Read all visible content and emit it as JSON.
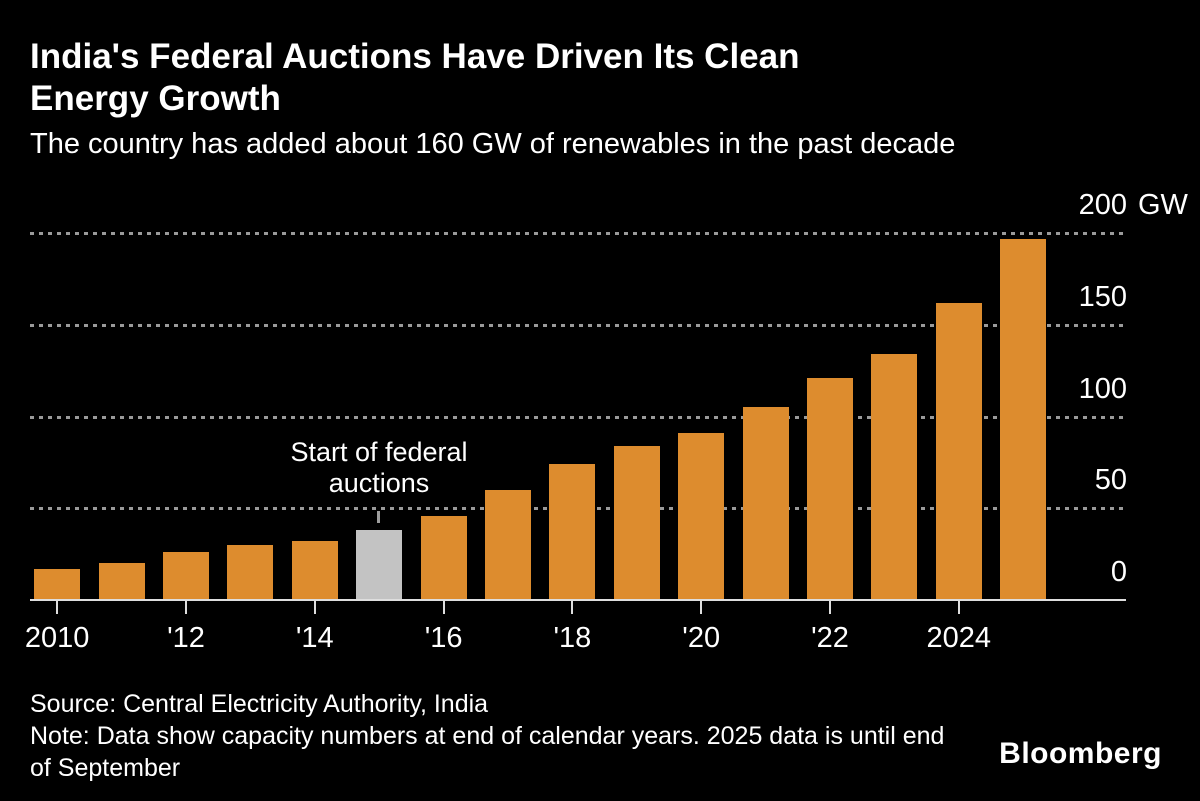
{
  "header": {
    "title_lines": [
      "India's Federal Auctions Have Driven Its Clean",
      "Energy Growth"
    ],
    "subtitle": "The country has added about 160 GW of renewables in the past decade"
  },
  "chart_data": {
    "type": "bar",
    "title": "India's Federal Auctions Have Driven Its Clean Energy Growth",
    "subtitle": "The country has added about 160 GW of renewables in the past decade",
    "unit": "GW",
    "categories": [
      2010,
      2011,
      2012,
      2013,
      2014,
      2015,
      2016,
      2017,
      2018,
      2019,
      2020,
      2021,
      2022,
      2023,
      2024,
      2025
    ],
    "values": [
      17,
      20,
      26,
      30,
      32,
      38,
      46,
      60,
      74,
      84,
      91,
      105,
      121,
      134,
      162,
      197
    ],
    "highlight_index": 5,
    "highlight_category": 2015,
    "annotation": {
      "text": "Start of federal auctions",
      "target_year": 2015
    },
    "y_ticks": [
      0,
      50,
      100,
      150,
      200
    ],
    "ylim": [
      0,
      200
    ],
    "grid": true,
    "legend": "none",
    "x_tick_labels": [
      "2010",
      "'12",
      "'14",
      "'16",
      "'18",
      "'20",
      "'22",
      "2024"
    ],
    "x_tick_years": [
      2010,
      2012,
      2014,
      2016,
      2018,
      2020,
      2022,
      2024
    ]
  },
  "footer": {
    "source": "Source: Central Electricity Authority, India",
    "note": "Note: Data show capacity numbers at end of calendar years. 2025 data is until end of September",
    "brand": "Bloomberg"
  },
  "colors": {
    "background": "#000000",
    "text": "#FFFFFF",
    "grid": "#9A9A9A",
    "axis": "#DEDEDE",
    "bar": "#DD8C2E",
    "highlight_bar": "#C3C3C3"
  }
}
